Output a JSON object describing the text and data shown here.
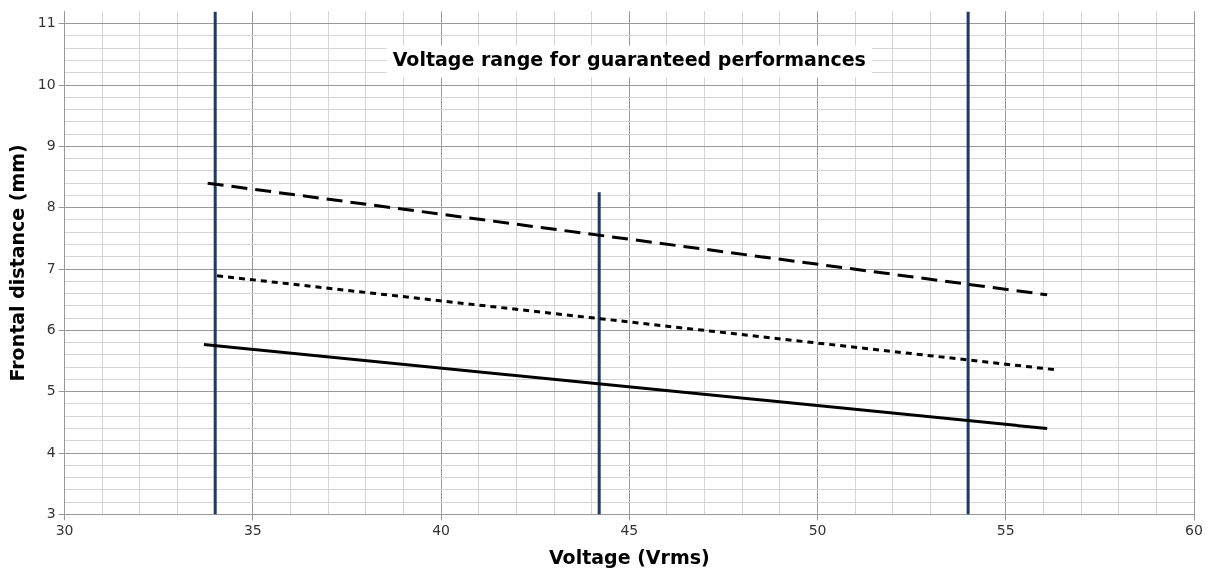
{
  "chart_data": {
    "type": "line",
    "xlabel": "Voltage (Vrms)",
    "ylabel": "Frontal distance (mm)",
    "xlim": [
      30,
      60
    ],
    "ylim": [
      3,
      11.2
    ],
    "xticks": [
      30,
      {
        "value": 31,
        "label": null
      },
      {
        "value": 32,
        "label": null
      },
      {
        "value": 33,
        "label": null
      },
      35,
      {
        "value": 36,
        "label": null
      },
      {
        "value": 37,
        "label": null
      },
      {
        "value": 38,
        "label": null
      },
      {
        "value": 39,
        "label": null
      },
      40,
      {
        "value": 41,
        "label": null
      },
      {
        "value": 42,
        "label": null
      },
      {
        "value": 43,
        "label": null
      },
      {
        "value": 44,
        "label": null
      },
      45,
      {
        "value": 46,
        "label": null
      },
      {
        "value": 47,
        "label": null
      },
      {
        "value": 48,
        "label": null
      },
      {
        "value": 49,
        "label": null
      },
      50,
      {
        "value": 51,
        "label": null
      },
      {
        "value": 52,
        "label": null
      },
      {
        "value": 53,
        "label": null
      },
      55,
      {
        "value": 56,
        "label": null
      },
      {
        "value": 57,
        "label": null
      },
      {
        "value": 58,
        "label": null
      },
      {
        "value": 59,
        "label": null
      },
      60
    ],
    "yticks": [
      3,
      {
        "value": 3.2,
        "label": null
      },
      {
        "value": 3.4,
        "label": null
      },
      {
        "value": 3.6,
        "label": null
      },
      {
        "value": 3.8,
        "label": null
      },
      4,
      {
        "value": 4.2,
        "label": null
      },
      {
        "value": 4.4,
        "label": null
      },
      {
        "value": 4.6,
        "label": null
      },
      {
        "value": 4.8,
        "label": null
      },
      5,
      {
        "value": 5.2,
        "label": null
      },
      {
        "value": 5.4,
        "label": null
      },
      {
        "value": 5.6,
        "label": null
      },
      {
        "value": 5.8,
        "label": null
      },
      6,
      {
        "value": 6.2,
        "label": null
      },
      {
        "value": 6.4,
        "label": null
      },
      {
        "value": 6.6,
        "label": null
      },
      {
        "value": 6.8,
        "label": null
      },
      7,
      {
        "value": 7.2,
        "label": null
      },
      {
        "value": 7.4,
        "label": null
      },
      {
        "value": 7.6,
        "label": null
      },
      {
        "value": 7.8,
        "label": null
      },
      8,
      {
        "value": 8.2,
        "label": null
      },
      {
        "value": 8.4,
        "label": null
      },
      {
        "value": 8.6,
        "label": null
      },
      {
        "value": 8.8,
        "label": null
      },
      9,
      {
        "value": 9.2,
        "label": null
      },
      {
        "value": 9.4,
        "label": null
      },
      {
        "value": 9.6,
        "label": null
      },
      {
        "value": 9.8,
        "label": null
      },
      10,
      {
        "value": 10.2,
        "label": null
      },
      {
        "value": 10.4,
        "label": null
      },
      {
        "value": 10.6,
        "label": null
      },
      {
        "value": 10.8,
        "label": null
      },
      11
    ],
    "grid": true,
    "marker": "none",
    "series": [
      {
        "color": "#000000",
        "line_style": "dashed",
        "x": [
          33.8,
          56.1
        ],
        "values": [
          8.4,
          6.58
        ]
      },
      {
        "color": "#000000",
        "line_style": "dotted",
        "x": [
          34.05,
          56.3
        ],
        "values": [
          6.89,
          5.36
        ]
      },
      {
        "color": "#000000",
        "line_style": "solid",
        "x": [
          33.7,
          56.1
        ],
        "values": [
          5.77,
          4.4
        ]
      },
      {
        "color": "#1f3864",
        "line_style": "solid",
        "x": [
          44.2,
          44.2
        ],
        "values": [
          3,
          8.25
        ]
      }
    ],
    "ref_lines": [
      {
        "axis": "x",
        "value": 34,
        "color": "#1f3864"
      },
      {
        "axis": "x",
        "value": 54,
        "color": "#1f3864"
      }
    ],
    "annotations": [
      "Voltage range for guaranteed performances"
    ]
  }
}
